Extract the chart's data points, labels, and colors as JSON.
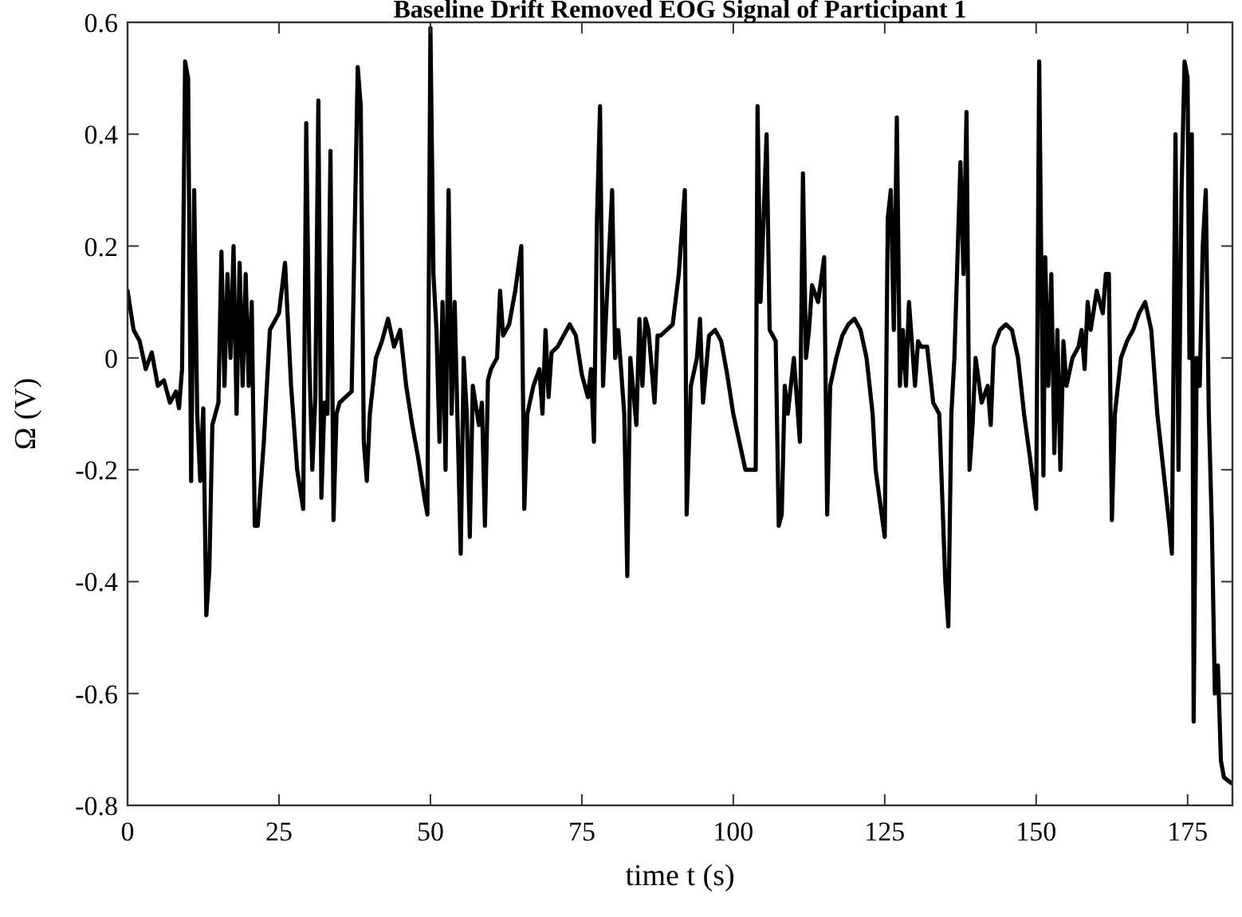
{
  "chart_data": {
    "type": "line",
    "title": "Baseline Drift Removed EOG Signal of Participant 1",
    "xlabel": "time t (s)",
    "ylabel": "Ω (V)",
    "xlim": [
      0,
      182.4
    ],
    "ylim": [
      -0.8,
      0.6
    ],
    "xticks": [
      0,
      25,
      50,
      75,
      100,
      125,
      150,
      175
    ],
    "yticks": [
      -0.8,
      -0.6,
      -0.4,
      -0.2,
      0,
      0.2,
      0.4,
      0.6
    ],
    "grid": false,
    "marker": "none",
    "line_style": "solid",
    "series": [
      {
        "color": "#000000",
        "x": [
          0,
          1,
          2,
          3,
          4,
          5,
          6,
          7,
          8,
          8.5,
          9,
          9.5,
          10,
          10.5,
          11,
          11.5,
          12,
          12.5,
          13,
          13.5,
          14,
          15,
          15.5,
          16,
          16.5,
          17,
          17.5,
          18,
          18.5,
          19,
          19.5,
          20,
          20.5,
          21,
          21.5,
          22.5,
          23.5,
          25,
          26,
          27,
          28,
          29,
          29.5,
          30,
          30.5,
          31,
          31.5,
          32,
          32.5,
          33,
          33.5,
          34,
          34.5,
          35,
          36,
          37,
          38,
          38.5,
          39,
          39.5,
          40,
          41,
          42,
          43,
          44,
          45,
          46,
          47,
          48,
          49,
          49.5,
          50,
          50.5,
          51,
          51.5,
          52,
          52.5,
          53,
          53.5,
          54,
          55,
          55.5,
          56,
          56.5,
          57,
          58,
          58.5,
          59,
          59.5,
          60,
          61,
          61.5,
          62,
          63,
          64,
          65,
          65.5,
          66,
          67,
          68,
          68.5,
          69,
          69.5,
          70,
          71,
          72,
          73,
          74,
          75,
          76,
          76.5,
          77,
          77.5,
          78,
          78.5,
          79,
          80,
          80.5,
          81,
          82,
          82.5,
          83,
          84,
          84.5,
          85,
          85.5,
          86,
          87,
          87.5,
          88,
          89,
          90,
          91,
          92,
          92.3,
          93,
          94,
          94.5,
          95,
          96,
          97,
          98,
          99,
          100,
          101,
          102,
          103,
          103.7,
          104,
          104.5,
          105.5,
          106,
          107,
          107.5,
          108,
          108.5,
          109,
          110,
          111,
          111.5,
          112,
          112.5,
          113,
          114,
          115,
          115.5,
          116,
          117,
          118,
          119,
          120,
          121,
          122,
          123,
          123.5,
          125,
          125.5,
          126,
          126.5,
          127,
          127.5,
          128,
          128.5,
          129,
          130,
          130.5,
          131,
          132,
          133,
          134,
          135,
          135.5,
          136,
          136.5,
          137.5,
          138,
          138.5,
          139,
          139.5,
          140,
          141,
          142,
          142.5,
          143,
          144,
          145,
          146,
          147,
          148,
          149,
          150,
          150.5,
          151.2,
          151.5,
          152,
          152.5,
          153,
          153.5,
          154,
          154.5,
          155,
          156,
          157,
          157.5,
          158,
          158.5,
          159,
          160,
          161,
          161.5,
          162,
          162.5,
          163,
          163.5,
          164,
          165,
          166,
          167,
          168,
          169,
          170,
          171,
          172,
          172.4,
          173,
          173.5,
          174,
          174.5,
          175,
          175.3,
          175.7,
          176,
          176.5,
          177,
          177.5,
          178,
          178.5,
          179,
          179.5,
          180,
          180.5,
          181,
          182.2
        ],
        "values": [
          0.12,
          0.05,
          0.03,
          -0.02,
          0.01,
          -0.05,
          -0.04,
          -0.08,
          -0.06,
          -0.09,
          -0.02,
          0.53,
          0.5,
          -0.22,
          0.3,
          -0.1,
          -0.22,
          -0.09,
          -0.46,
          -0.38,
          -0.12,
          -0.08,
          0.19,
          -0.05,
          0.15,
          0,
          0.2,
          -0.1,
          0.17,
          -0.05,
          0.15,
          -0.05,
          0.1,
          -0.3,
          -0.3,
          -0.15,
          0.05,
          0.08,
          0.17,
          -0.05,
          -0.2,
          -0.27,
          0.42,
          0,
          -0.2,
          -0.07,
          0.46,
          -0.25,
          -0.08,
          -0.1,
          0.37,
          -0.29,
          -0.1,
          -0.08,
          -0.07,
          -0.06,
          0.52,
          0.45,
          -0.15,
          -0.22,
          -0.1,
          0,
          0.03,
          0.07,
          0.02,
          0.05,
          -0.05,
          -0.12,
          -0.18,
          -0.25,
          -0.28,
          0.59,
          0.15,
          0.05,
          -0.15,
          0.1,
          -0.2,
          0.3,
          -0.1,
          0.1,
          -0.35,
          0,
          -0.1,
          -0.32,
          -0.05,
          -0.12,
          -0.08,
          -0.3,
          -0.04,
          -0.02,
          0,
          0.12,
          0.04,
          0.06,
          0.12,
          0.2,
          -0.27,
          -0.1,
          -0.05,
          -0.02,
          -0.1,
          0.05,
          -0.07,
          0.01,
          0.02,
          0.04,
          0.06,
          0.04,
          -0.03,
          -0.07,
          -0.02,
          -0.15,
          0.25,
          0.45,
          -0.05,
          0.08,
          0.3,
          0,
          0.05,
          -0.1,
          -0.39,
          0,
          -0.12,
          0.07,
          -0.05,
          0.07,
          0.05,
          -0.08,
          0.04,
          0.04,
          0.05,
          0.06,
          0.15,
          0.3,
          -0.28,
          -0.05,
          0,
          0.07,
          -0.08,
          0.04,
          0.05,
          0.03,
          -0.03,
          -0.1,
          -0.15,
          -0.2,
          -0.2,
          -0.2,
          0.45,
          0.1,
          0.4,
          0.05,
          0.03,
          -0.3,
          -0.28,
          -0.05,
          -0.1,
          0,
          -0.15,
          0.33,
          0,
          0.05,
          0.13,
          0.1,
          0.18,
          -0.28,
          -0.05,
          0,
          0.04,
          0.06,
          0.07,
          0.05,
          0,
          -0.1,
          -0.2,
          -0.32,
          0.25,
          0.3,
          0.05,
          0.43,
          -0.05,
          0.05,
          -0.05,
          0.1,
          -0.05,
          0.03,
          0.02,
          0.02,
          -0.08,
          -0.1,
          -0.4,
          -0.48,
          -0.1,
          0,
          0.35,
          0.15,
          0.44,
          -0.2,
          -0.12,
          0,
          -0.08,
          -0.05,
          -0.12,
          0.02,
          0.05,
          0.06,
          0.05,
          0,
          -0.1,
          -0.18,
          -0.27,
          0.53,
          -0.21,
          0.18,
          -0.05,
          0.15,
          -0.17,
          0.05,
          -0.2,
          0.03,
          -0.05,
          0,
          0.02,
          0.05,
          -0.02,
          0.1,
          0.05,
          0.12,
          0.08,
          0.15,
          0.15,
          -0.29,
          -0.1,
          -0.05,
          0,
          0.03,
          0.05,
          0.08,
          0.1,
          0.05,
          -0.1,
          -0.2,
          -0.3,
          -0.35,
          0.4,
          -0.2,
          0.3,
          0.53,
          0.5,
          0,
          0.4,
          -0.65,
          0,
          -0.05,
          0.2,
          0.3,
          -0.1,
          -0.3,
          -0.6,
          -0.55,
          -0.72,
          -0.75,
          -0.76
        ]
      }
    ]
  }
}
